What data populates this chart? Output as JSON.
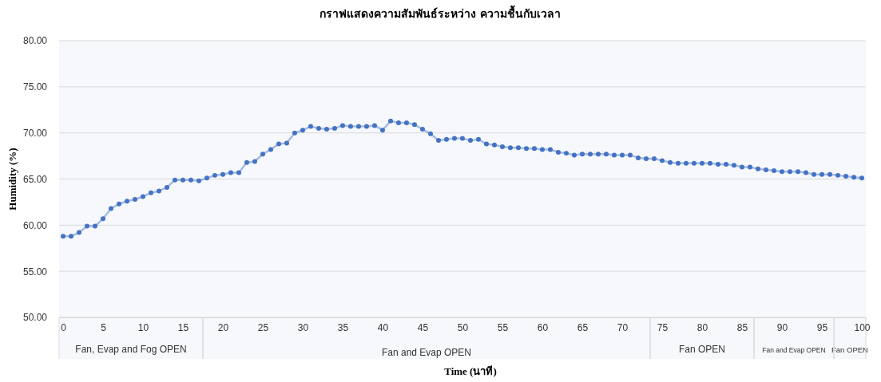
{
  "chart_data": {
    "type": "line",
    "title": "กราฟแสดงความสัมพันธ์ระหว่าง ความชื้นกับเวลา",
    "xlabel": "Time (นาที)",
    "ylabel": "Humidity (%)",
    "x": [
      0,
      1,
      2,
      3,
      4,
      5,
      6,
      7,
      8,
      9,
      10,
      11,
      12,
      13,
      14,
      15,
      16,
      17,
      18,
      19,
      20,
      21,
      22,
      23,
      24,
      25,
      26,
      27,
      28,
      29,
      30,
      31,
      32,
      33,
      34,
      35,
      36,
      37,
      38,
      39,
      40,
      41,
      42,
      43,
      44,
      45,
      46,
      47,
      48,
      49,
      50,
      51,
      52,
      53,
      54,
      55,
      56,
      57,
      58,
      59,
      60,
      61,
      62,
      63,
      64,
      65,
      66,
      67,
      68,
      69,
      70,
      71,
      72,
      73,
      74,
      75,
      76,
      77,
      78,
      79,
      80,
      81,
      82,
      83,
      84,
      85,
      86,
      87,
      88,
      89,
      90,
      91,
      92,
      93,
      94,
      95,
      96,
      97,
      98,
      99,
      100
    ],
    "series": [
      {
        "color": "#4472c4",
        "values": [
          58.8,
          58.8,
          59.2,
          59.9,
          59.9,
          60.7,
          61.8,
          62.3,
          62.6,
          62.8,
          63.1,
          63.5,
          63.7,
          64.1,
          64.9,
          64.9,
          64.9,
          64.8,
          65.1,
          65.4,
          65.5,
          65.7,
          65.7,
          66.8,
          66.9,
          67.7,
          68.2,
          68.8,
          68.9,
          70.0,
          70.3,
          70.7,
          70.5,
          70.4,
          70.5,
          70.8,
          70.7,
          70.7,
          70.7,
          70.8,
          70.3,
          71.3,
          71.1,
          71.1,
          70.9,
          70.4,
          69.9,
          69.2,
          69.3,
          69.4,
          69.4,
          69.2,
          69.3,
          68.8,
          68.7,
          68.5,
          68.4,
          68.4,
          68.3,
          68.3,
          68.2,
          68.2,
          67.9,
          67.8,
          67.6,
          67.7,
          67.7,
          67.7,
          67.7,
          67.6,
          67.6,
          67.6,
          67.3,
          67.2,
          67.2,
          67.0,
          66.8,
          66.7,
          66.7,
          66.7,
          66.7,
          66.7,
          66.6,
          66.6,
          66.5,
          66.3,
          66.3,
          66.1,
          66.0,
          65.9,
          65.8,
          65.8,
          65.8,
          65.7,
          65.5,
          65.5,
          65.5,
          65.4,
          65.3,
          65.2,
          65.1
        ]
      }
    ],
    "xlim": [
      -0.5,
      100.5
    ],
    "xticks": [
      0,
      5,
      10,
      15,
      20,
      25,
      30,
      35,
      40,
      45,
      50,
      55,
      60,
      65,
      70,
      75,
      80,
      85,
      90,
      95,
      100
    ],
    "ylim": [
      50,
      80
    ],
    "yticks": [
      {
        "value": 50,
        "label": "50.00"
      },
      {
        "value": 55,
        "label": "55.00"
      },
      {
        "value": 60,
        "label": "60.00"
      },
      {
        "value": 65,
        "label": "65.00"
      },
      {
        "value": 70,
        "label": "70.00"
      },
      {
        "value": 75,
        "label": "75.00"
      },
      {
        "value": 80,
        "label": "80.00"
      }
    ],
    "grid": "y",
    "marker": "circle",
    "line_style": "solid",
    "bands": [
      {
        "axis": "x",
        "from": -0.5,
        "to": 17.5,
        "label": "Fan, Evap and Fog OPEN"
      },
      {
        "axis": "x",
        "from": 17.5,
        "to": 73.5,
        "label": "Fan and Evap  OPEN"
      },
      {
        "axis": "x",
        "from": 73.5,
        "to": 86.5,
        "label": "Fan OPEN"
      },
      {
        "axis": "x",
        "from": 86.5,
        "to": 96.5,
        "label": "Fan and Evap  OPEN"
      },
      {
        "axis": "x",
        "from": 96.5,
        "to": 100.5,
        "label": "Fan OPEN"
      }
    ]
  }
}
